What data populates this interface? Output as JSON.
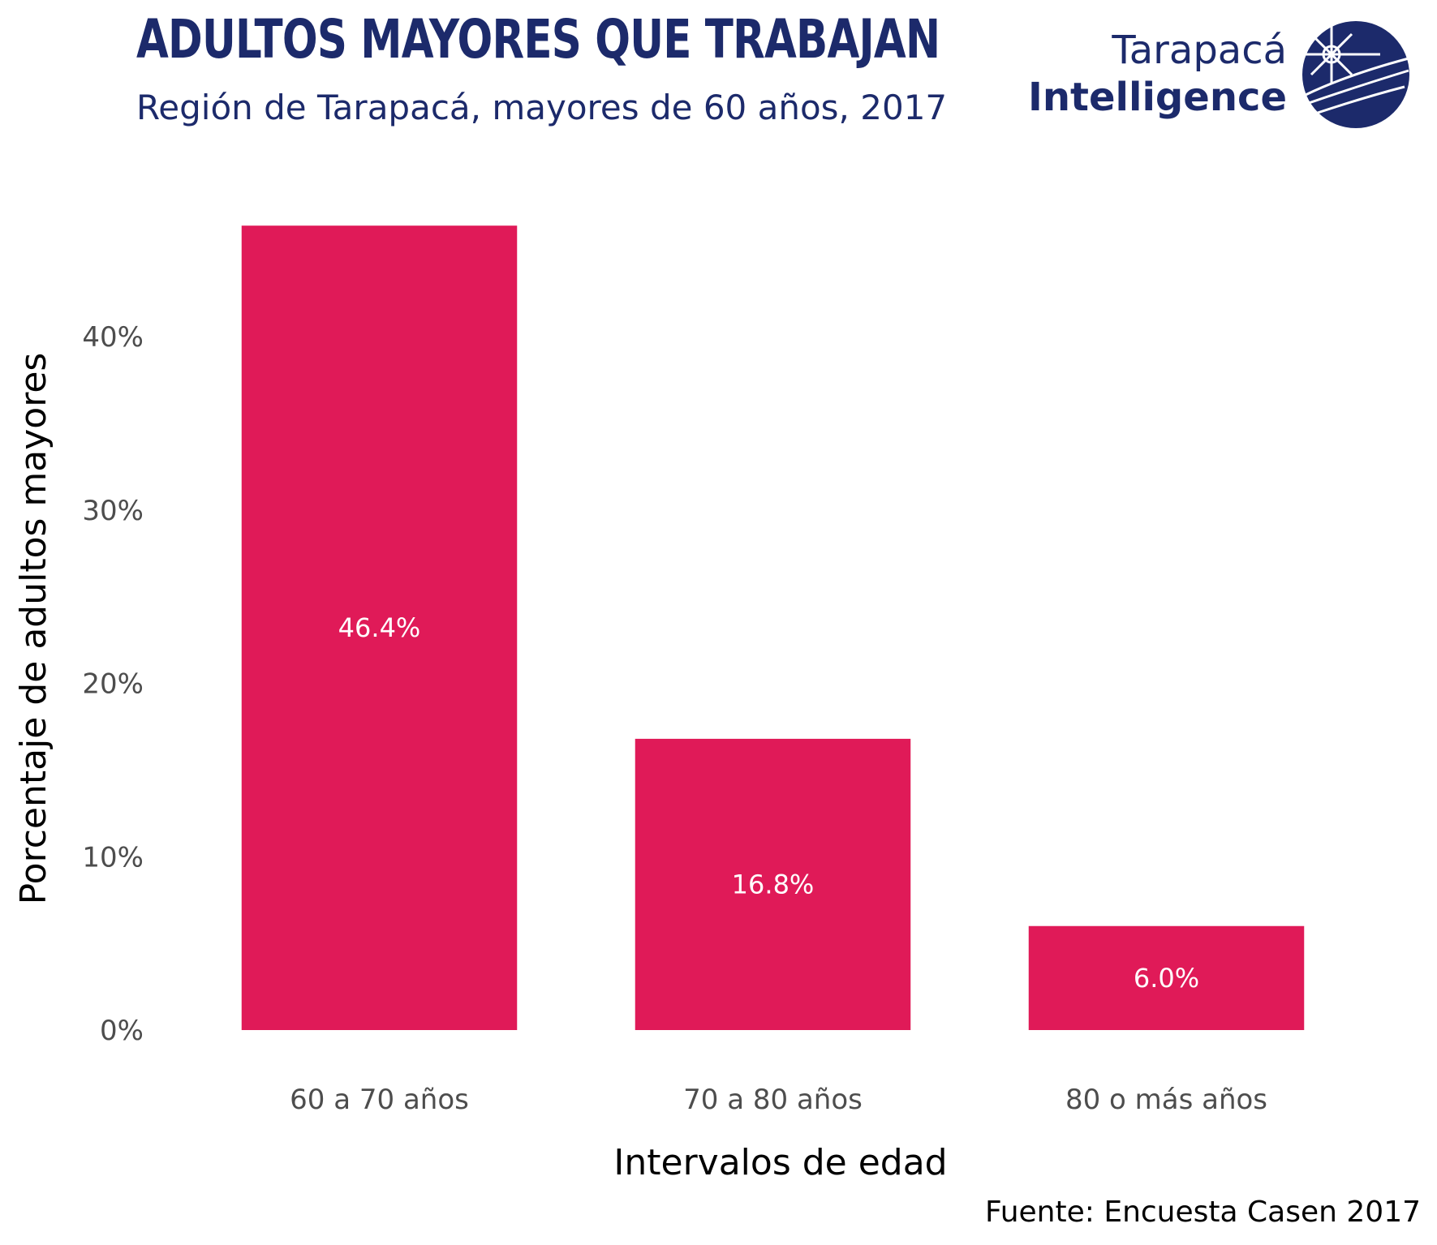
{
  "header": {
    "title": "ADULTOS MAYORES QUE TRABAJAN",
    "subtitle": "Región de Tarapacá, mayores de 60 años, 2017"
  },
  "logo": {
    "line1": "Tarapacá",
    "line2": "Intelligence",
    "color": "#1c2a6b"
  },
  "source": "Fuente: Encuesta Casen 2017",
  "chart_data": {
    "type": "bar",
    "categories": [
      "60 a 70 años",
      "70 a 80 años",
      "80 o más años"
    ],
    "values": [
      46.4,
      16.8,
      6.0
    ],
    "value_labels": [
      "46.4%",
      "16.8%",
      "6.0%"
    ],
    "xlabel": "Intervalos de edad",
    "ylabel": "Porcentaje de adultos mayores",
    "ylim": [
      0,
      48
    ],
    "yticks": [
      0,
      10,
      20,
      30,
      40
    ],
    "ytick_labels": [
      "0%",
      "10%",
      "20%",
      "30%",
      "40%"
    ],
    "bar_color": "#e01a58",
    "grid": false,
    "legend": "none"
  }
}
